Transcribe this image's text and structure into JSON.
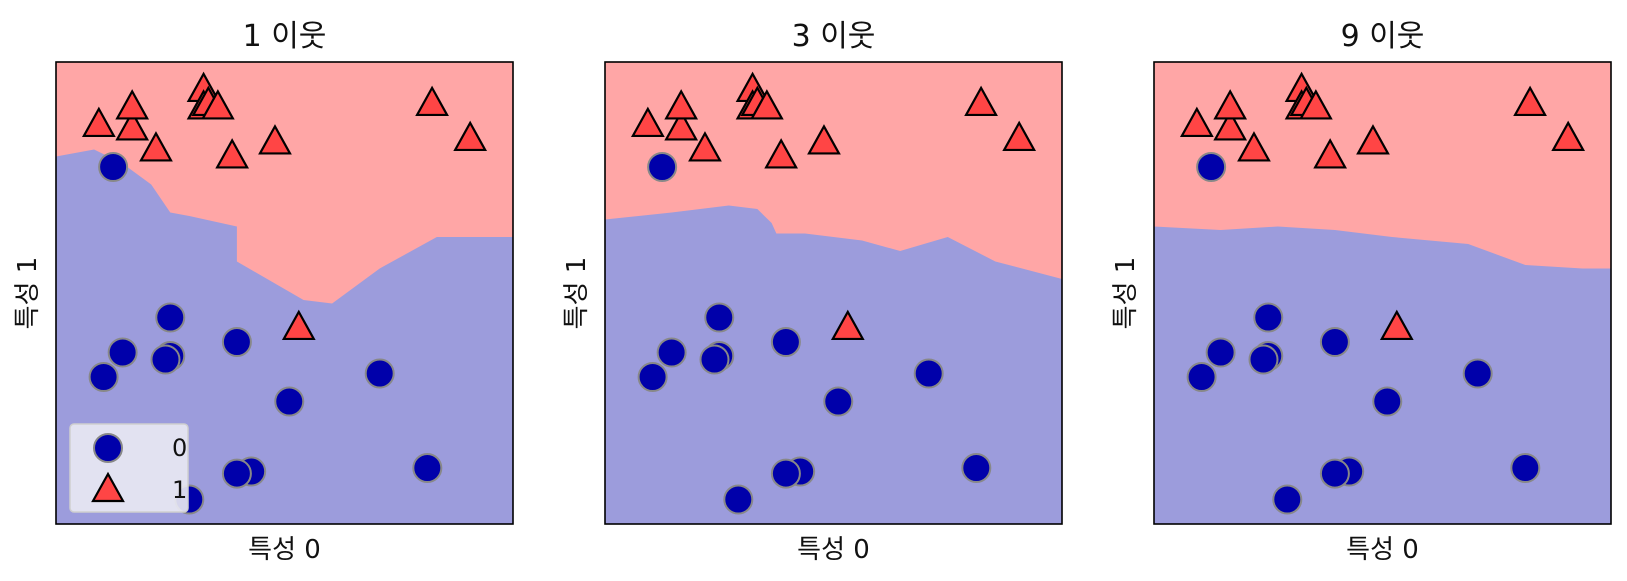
{
  "figure": {
    "colors": {
      "class0_region": "#9c9cdc",
      "class1_region": "#ffa6a6",
      "class0_marker": "#0000aa",
      "class0_edge": "#888888",
      "class1_marker": "#ff4545",
      "class1_edge": "#000000"
    }
  },
  "chart_data": [
    {
      "type": "scatter",
      "title": "1 이웃",
      "xlabel": "특성 0",
      "ylabel": "특성 1",
      "xlim": [
        7.5,
        12.3
      ],
      "ylim": [
        -0.8,
        5.8
      ],
      "xticks": "hidden",
      "yticks": "hidden",
      "boundary": [
        [
          7.5,
          4.45
        ],
        [
          7.9,
          4.55
        ],
        [
          8.2,
          4.35
        ],
        [
          8.5,
          4.05
        ],
        [
          8.7,
          3.65
        ],
        [
          8.9,
          3.6
        ],
        [
          9.4,
          3.45
        ],
        [
          9.4,
          2.95
        ],
        [
          10.1,
          2.4
        ],
        [
          10.4,
          2.35
        ],
        [
          10.9,
          2.85
        ],
        [
          11.5,
          3.3
        ],
        [
          12.3,
          3.3
        ]
      ],
      "legend": {
        "position": "lower-left",
        "entries": [
          "0",
          "1"
        ]
      },
      "series": [
        {
          "name": "0",
          "marker": "circle",
          "x": [
            8.1,
            8.7,
            8.2,
            8.7,
            8.65,
            8.0,
            9.4,
            9.95,
            9.55,
            9.4,
            8.9,
            10.9,
            11.4
          ],
          "y": [
            4.3,
            2.15,
            1.65,
            1.6,
            1.55,
            1.3,
            1.8,
            0.95,
            -0.05,
            -0.08,
            -0.45,
            1.35,
            0.0
          ]
        },
        {
          "name": "1",
          "marker": "triangle",
          "x": [
            7.95,
            8.3,
            8.3,
            8.55,
            9.05,
            9.05,
            9.1,
            9.2,
            9.35,
            9.8,
            11.45,
            11.85,
            10.05
          ],
          "y": [
            4.9,
            4.85,
            5.15,
            4.55,
            5.4,
            5.15,
            5.2,
            5.15,
            4.45,
            4.65,
            5.2,
            4.7,
            2.0
          ]
        }
      ]
    },
    {
      "type": "scatter",
      "title": "3 이웃",
      "xlabel": "특성 0",
      "ylabel": "특성 1",
      "xlim": [
        7.5,
        12.3
      ],
      "ylim": [
        -0.8,
        5.8
      ],
      "xticks": "hidden",
      "yticks": "hidden",
      "boundary": [
        [
          7.5,
          3.55
        ],
        [
          8.2,
          3.65
        ],
        [
          8.5,
          3.7
        ],
        [
          8.8,
          3.75
        ],
        [
          9.1,
          3.7
        ],
        [
          9.25,
          3.5
        ],
        [
          9.3,
          3.35
        ],
        [
          9.6,
          3.35
        ],
        [
          10.2,
          3.25
        ],
        [
          10.6,
          3.1
        ],
        [
          11.1,
          3.3
        ],
        [
          11.6,
          2.95
        ],
        [
          12.3,
          2.7
        ]
      ],
      "series": [
        {
          "name": "0",
          "marker": "circle",
          "x": [
            8.1,
            8.7,
            8.2,
            8.7,
            8.65,
            8.0,
            9.4,
            9.95,
            9.55,
            9.4,
            8.9,
            10.9,
            11.4
          ],
          "y": [
            4.3,
            2.15,
            1.65,
            1.6,
            1.55,
            1.3,
            1.8,
            0.95,
            -0.05,
            -0.08,
            -0.45,
            1.35,
            0.0
          ]
        },
        {
          "name": "1",
          "marker": "triangle",
          "x": [
            7.95,
            8.3,
            8.3,
            8.55,
            9.05,
            9.05,
            9.1,
            9.2,
            9.35,
            9.8,
            11.45,
            11.85,
            10.05
          ],
          "y": [
            4.9,
            4.85,
            5.15,
            4.55,
            5.4,
            5.15,
            5.2,
            5.15,
            4.45,
            4.65,
            5.2,
            4.7,
            2.0
          ]
        }
      ]
    },
    {
      "type": "scatter",
      "title": "9 이웃",
      "xlabel": "특성 0",
      "ylabel": "특성 1",
      "xlim": [
        7.5,
        12.3
      ],
      "ylim": [
        -0.8,
        5.8
      ],
      "xticks": "hidden",
      "yticks": "hidden",
      "boundary": [
        [
          7.5,
          3.45
        ],
        [
          8.2,
          3.4
        ],
        [
          8.8,
          3.45
        ],
        [
          9.4,
          3.4
        ],
        [
          10.0,
          3.3
        ],
        [
          10.8,
          3.2
        ],
        [
          11.4,
          2.9
        ],
        [
          12.0,
          2.85
        ],
        [
          12.3,
          2.85
        ]
      ],
      "series": [
        {
          "name": "0",
          "marker": "circle",
          "x": [
            8.1,
            8.7,
            8.2,
            8.7,
            8.65,
            8.0,
            9.4,
            9.95,
            9.55,
            9.4,
            8.9,
            10.9,
            11.4
          ],
          "y": [
            4.3,
            2.15,
            1.65,
            1.6,
            1.55,
            1.3,
            1.8,
            0.95,
            -0.05,
            -0.08,
            -0.45,
            1.35,
            0.0
          ]
        },
        {
          "name": "1",
          "marker": "triangle",
          "x": [
            7.95,
            8.3,
            8.3,
            8.55,
            9.05,
            9.05,
            9.1,
            9.2,
            9.35,
            9.8,
            11.45,
            11.85,
            10.05
          ],
          "y": [
            4.9,
            4.85,
            5.15,
            4.55,
            5.4,
            5.15,
            5.2,
            5.15,
            4.45,
            4.65,
            5.2,
            4.7,
            2.0
          ]
        }
      ]
    }
  ]
}
